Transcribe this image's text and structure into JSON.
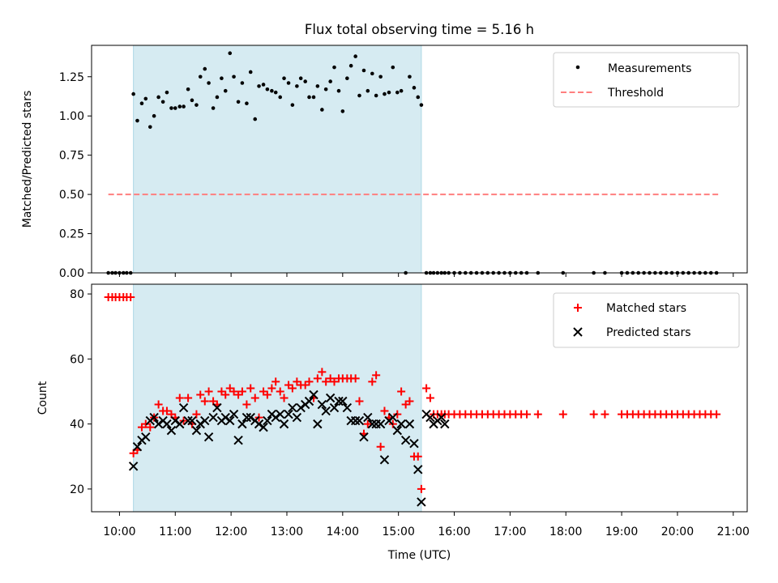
{
  "chart_data": [
    {
      "type": "scatter",
      "title": "Flux total observing time = 5.16 h",
      "ylabel": "Matched/Predicted stars",
      "xlim": [
        9.5,
        21.25
      ],
      "ylim": [
        0,
        1.45
      ],
      "yticks": [
        0.0,
        0.25,
        0.5,
        0.75,
        1.0,
        1.25
      ],
      "ytick_labels": [
        "0.00",
        "0.25",
        "0.50",
        "0.75",
        "1.00",
        "1.25"
      ],
      "shaded_span": [
        10.25,
        15.41
      ],
      "legend_location": "upper right",
      "series": [
        {
          "name": "Measurements",
          "marker": "dot",
          "color": "#000000",
          "x": [
            9.8,
            9.87,
            9.93,
            10.0,
            10.07,
            10.13,
            10.2,
            10.25,
            10.32,
            10.4,
            10.47,
            10.55,
            10.62,
            10.7,
            10.78,
            10.85,
            10.93,
            11.0,
            11.08,
            11.15,
            11.23,
            11.3,
            11.38,
            11.45,
            11.53,
            11.6,
            11.68,
            11.75,
            11.83,
            11.9,
            11.98,
            12.05,
            12.13,
            12.2,
            12.28,
            12.35,
            12.43,
            12.5,
            12.58,
            12.65,
            12.73,
            12.8,
            12.88,
            12.95,
            13.03,
            13.1,
            13.18,
            13.25,
            13.33,
            13.4,
            13.48,
            13.55,
            13.63,
            13.7,
            13.78,
            13.85,
            13.93,
            14.0,
            14.08,
            14.15,
            14.23,
            14.3,
            14.38,
            14.45,
            14.53,
            14.6,
            14.68,
            14.75,
            14.83,
            14.9,
            14.98,
            15.05,
            15.13,
            15.2,
            15.28,
            15.35,
            15.41,
            15.5,
            15.57,
            15.63,
            15.7,
            15.77,
            15.83,
            15.9,
            16.0,
            16.1,
            16.2,
            16.3,
            16.4,
            16.5,
            16.6,
            16.7,
            16.8,
            16.9,
            17.0,
            17.1,
            17.2,
            17.3,
            17.5,
            17.95,
            18.5,
            18.7,
            19.0,
            19.1,
            19.2,
            19.3,
            19.4,
            19.5,
            19.6,
            19.7,
            19.8,
            19.9,
            20.0,
            20.1,
            20.2,
            20.3,
            20.4,
            20.5,
            20.6,
            20.7
          ],
          "y": [
            0,
            0,
            0,
            0,
            0,
            0,
            0,
            1.14,
            0.97,
            1.08,
            1.11,
            0.93,
            1.0,
            1.12,
            1.09,
            1.15,
            1.05,
            1.05,
            1.06,
            1.06,
            1.17,
            1.1,
            1.07,
            1.25,
            1.3,
            1.21,
            1.05,
            1.12,
            1.24,
            1.16,
            1.4,
            1.25,
            1.09,
            1.21,
            1.08,
            1.28,
            0.98,
            1.19,
            1.2,
            1.17,
            1.16,
            1.15,
            1.12,
            1.24,
            1.21,
            1.07,
            1.19,
            1.24,
            1.22,
            1.12,
            1.12,
            1.19,
            1.04,
            1.17,
            1.22,
            1.31,
            1.16,
            1.03,
            1.24,
            1.32,
            1.38,
            1.13,
            1.29,
            1.16,
            1.27,
            1.13,
            1.25,
            1.14,
            1.15,
            1.31,
            1.15,
            1.16,
            0,
            1.25,
            1.18,
            1.12,
            1.07,
            0,
            0,
            0,
            0,
            0,
            0,
            0,
            0,
            0,
            0,
            0,
            0,
            0,
            0,
            0,
            0,
            0,
            0,
            0,
            0,
            0,
            0,
            0,
            0,
            0,
            0,
            0,
            0,
            0,
            0,
            0,
            0,
            0,
            0,
            0,
            0,
            0,
            0,
            0,
            0,
            0,
            0,
            0
          ]
        },
        {
          "name": "Threshold",
          "marker": "dashed-line",
          "color": "#ff7f7f",
          "x": [
            9.8,
            20.75
          ],
          "y": [
            0.5,
            0.5
          ]
        }
      ]
    },
    {
      "type": "scatter",
      "xlabel": "Time (UTC)",
      "ylabel": "Count",
      "xlim": [
        9.5,
        21.25
      ],
      "ylim": [
        13,
        83
      ],
      "xticks": [
        10,
        11,
        12,
        13,
        14,
        15,
        16,
        17,
        18,
        19,
        20,
        21
      ],
      "xtick_labels": [
        "10:00",
        "11:00",
        "12:00",
        "13:00",
        "14:00",
        "15:00",
        "16:00",
        "17:00",
        "18:00",
        "19:00",
        "20:00",
        "21:00"
      ],
      "yticks": [
        20,
        40,
        60,
        80
      ],
      "ytick_labels": [
        "20",
        "40",
        "60",
        "80"
      ],
      "shaded_span": [
        10.25,
        15.41
      ],
      "legend_location": "upper right",
      "series": [
        {
          "name": "Matched stars",
          "marker": "plus",
          "color": "#ff0000",
          "x": [
            9.8,
            9.87,
            9.93,
            10.0,
            10.07,
            10.13,
            10.2,
            10.25,
            10.32,
            10.4,
            10.47,
            10.55,
            10.62,
            10.7,
            10.78,
            10.85,
            10.93,
            11.0,
            11.08,
            11.15,
            11.23,
            11.3,
            11.38,
            11.45,
            11.53,
            11.6,
            11.68,
            11.75,
            11.83,
            11.9,
            11.98,
            12.05,
            12.13,
            12.2,
            12.28,
            12.35,
            12.43,
            12.5,
            12.58,
            12.65,
            12.73,
            12.8,
            12.88,
            12.95,
            13.03,
            13.1,
            13.18,
            13.25,
            13.33,
            13.4,
            13.48,
            13.55,
            13.63,
            13.7,
            13.78,
            13.85,
            13.93,
            14.0,
            14.08,
            14.15,
            14.23,
            14.3,
            14.38,
            14.45,
            14.53,
            14.6,
            14.68,
            14.75,
            14.83,
            14.9,
            14.98,
            15.05,
            15.13,
            15.2,
            15.28,
            15.35,
            15.41,
            15.5,
            15.57,
            15.63,
            15.7,
            15.77,
            15.83,
            15.9,
            16.0,
            16.1,
            16.2,
            16.3,
            16.4,
            16.5,
            16.6,
            16.7,
            16.8,
            16.9,
            17.0,
            17.1,
            17.2,
            17.3,
            17.5,
            17.95,
            18.5,
            18.7,
            19.0,
            19.1,
            19.2,
            19.3,
            19.4,
            19.5,
            19.6,
            19.7,
            19.8,
            19.9,
            20.0,
            20.1,
            20.2,
            20.3,
            20.4,
            20.5,
            20.6,
            20.7
          ],
          "y": [
            79,
            79,
            79,
            79,
            79,
            79,
            79,
            31,
            32,
            39,
            40,
            39,
            42,
            46,
            44,
            44,
            43,
            42,
            48,
            41,
            48,
            40,
            43,
            49,
            47,
            50,
            47,
            46,
            50,
            49,
            51,
            50,
            49,
            50,
            46,
            51,
            48,
            42,
            50,
            49,
            51,
            53,
            50,
            48,
            52,
            51,
            53,
            52,
            52,
            53,
            48,
            54,
            56,
            53,
            54,
            53,
            54,
            54,
            54,
            54,
            54,
            47,
            37,
            40,
            53,
            55,
            33,
            44,
            42,
            40,
            43,
            50,
            46,
            47,
            30,
            30,
            20,
            51,
            48,
            43,
            43,
            43,
            43,
            43,
            43,
            43,
            43,
            43,
            43,
            43,
            43,
            43,
            43,
            43,
            43,
            43,
            43,
            43,
            43,
            43,
            43,
            43,
            43,
            43,
            43,
            43,
            43,
            43,
            43,
            43,
            43,
            43,
            43,
            43,
            43,
            43,
            43,
            43,
            43,
            43
          ]
        },
        {
          "name": "Predicted stars",
          "marker": "x",
          "color": "#000000",
          "x": [
            10.25,
            10.32,
            10.4,
            10.47,
            10.55,
            10.62,
            10.7,
            10.78,
            10.85,
            10.93,
            11.0,
            11.08,
            11.15,
            11.23,
            11.3,
            11.38,
            11.45,
            11.53,
            11.6,
            11.68,
            11.75,
            11.83,
            11.9,
            11.98,
            12.05,
            12.13,
            12.2,
            12.28,
            12.35,
            12.43,
            12.5,
            12.58,
            12.65,
            12.73,
            12.8,
            12.88,
            12.95,
            13.03,
            13.1,
            13.18,
            13.25,
            13.33,
            13.4,
            13.48,
            13.55,
            13.63,
            13.7,
            13.78,
            13.85,
            13.93,
            14.0,
            14.08,
            14.15,
            14.23,
            14.3,
            14.38,
            14.45,
            14.53,
            14.6,
            14.68,
            14.75,
            14.83,
            14.9,
            14.98,
            15.05,
            15.13,
            15.2,
            15.28,
            15.35,
            15.41,
            15.5,
            15.57,
            15.63,
            15.7,
            15.77,
            15.83
          ],
          "y": [
            27,
            33,
            35,
            36,
            41,
            42,
            40,
            41,
            40,
            38,
            41,
            40,
            45,
            41,
            41,
            38,
            40,
            41,
            36,
            42,
            45,
            41,
            42,
            41,
            43,
            35,
            40,
            42,
            42,
            41,
            40,
            39,
            41,
            43,
            42,
            43,
            40,
            43,
            45,
            42,
            45,
            46,
            47,
            49,
            40,
            46,
            44,
            48,
            45,
            47,
            47,
            45,
            41,
            41,
            41,
            36,
            42,
            40,
            40,
            40,
            29,
            41,
            42,
            38,
            40,
            35,
            40,
            34,
            26,
            16,
            43,
            42,
            40,
            41,
            42,
            40
          ]
        }
      ]
    }
  ]
}
